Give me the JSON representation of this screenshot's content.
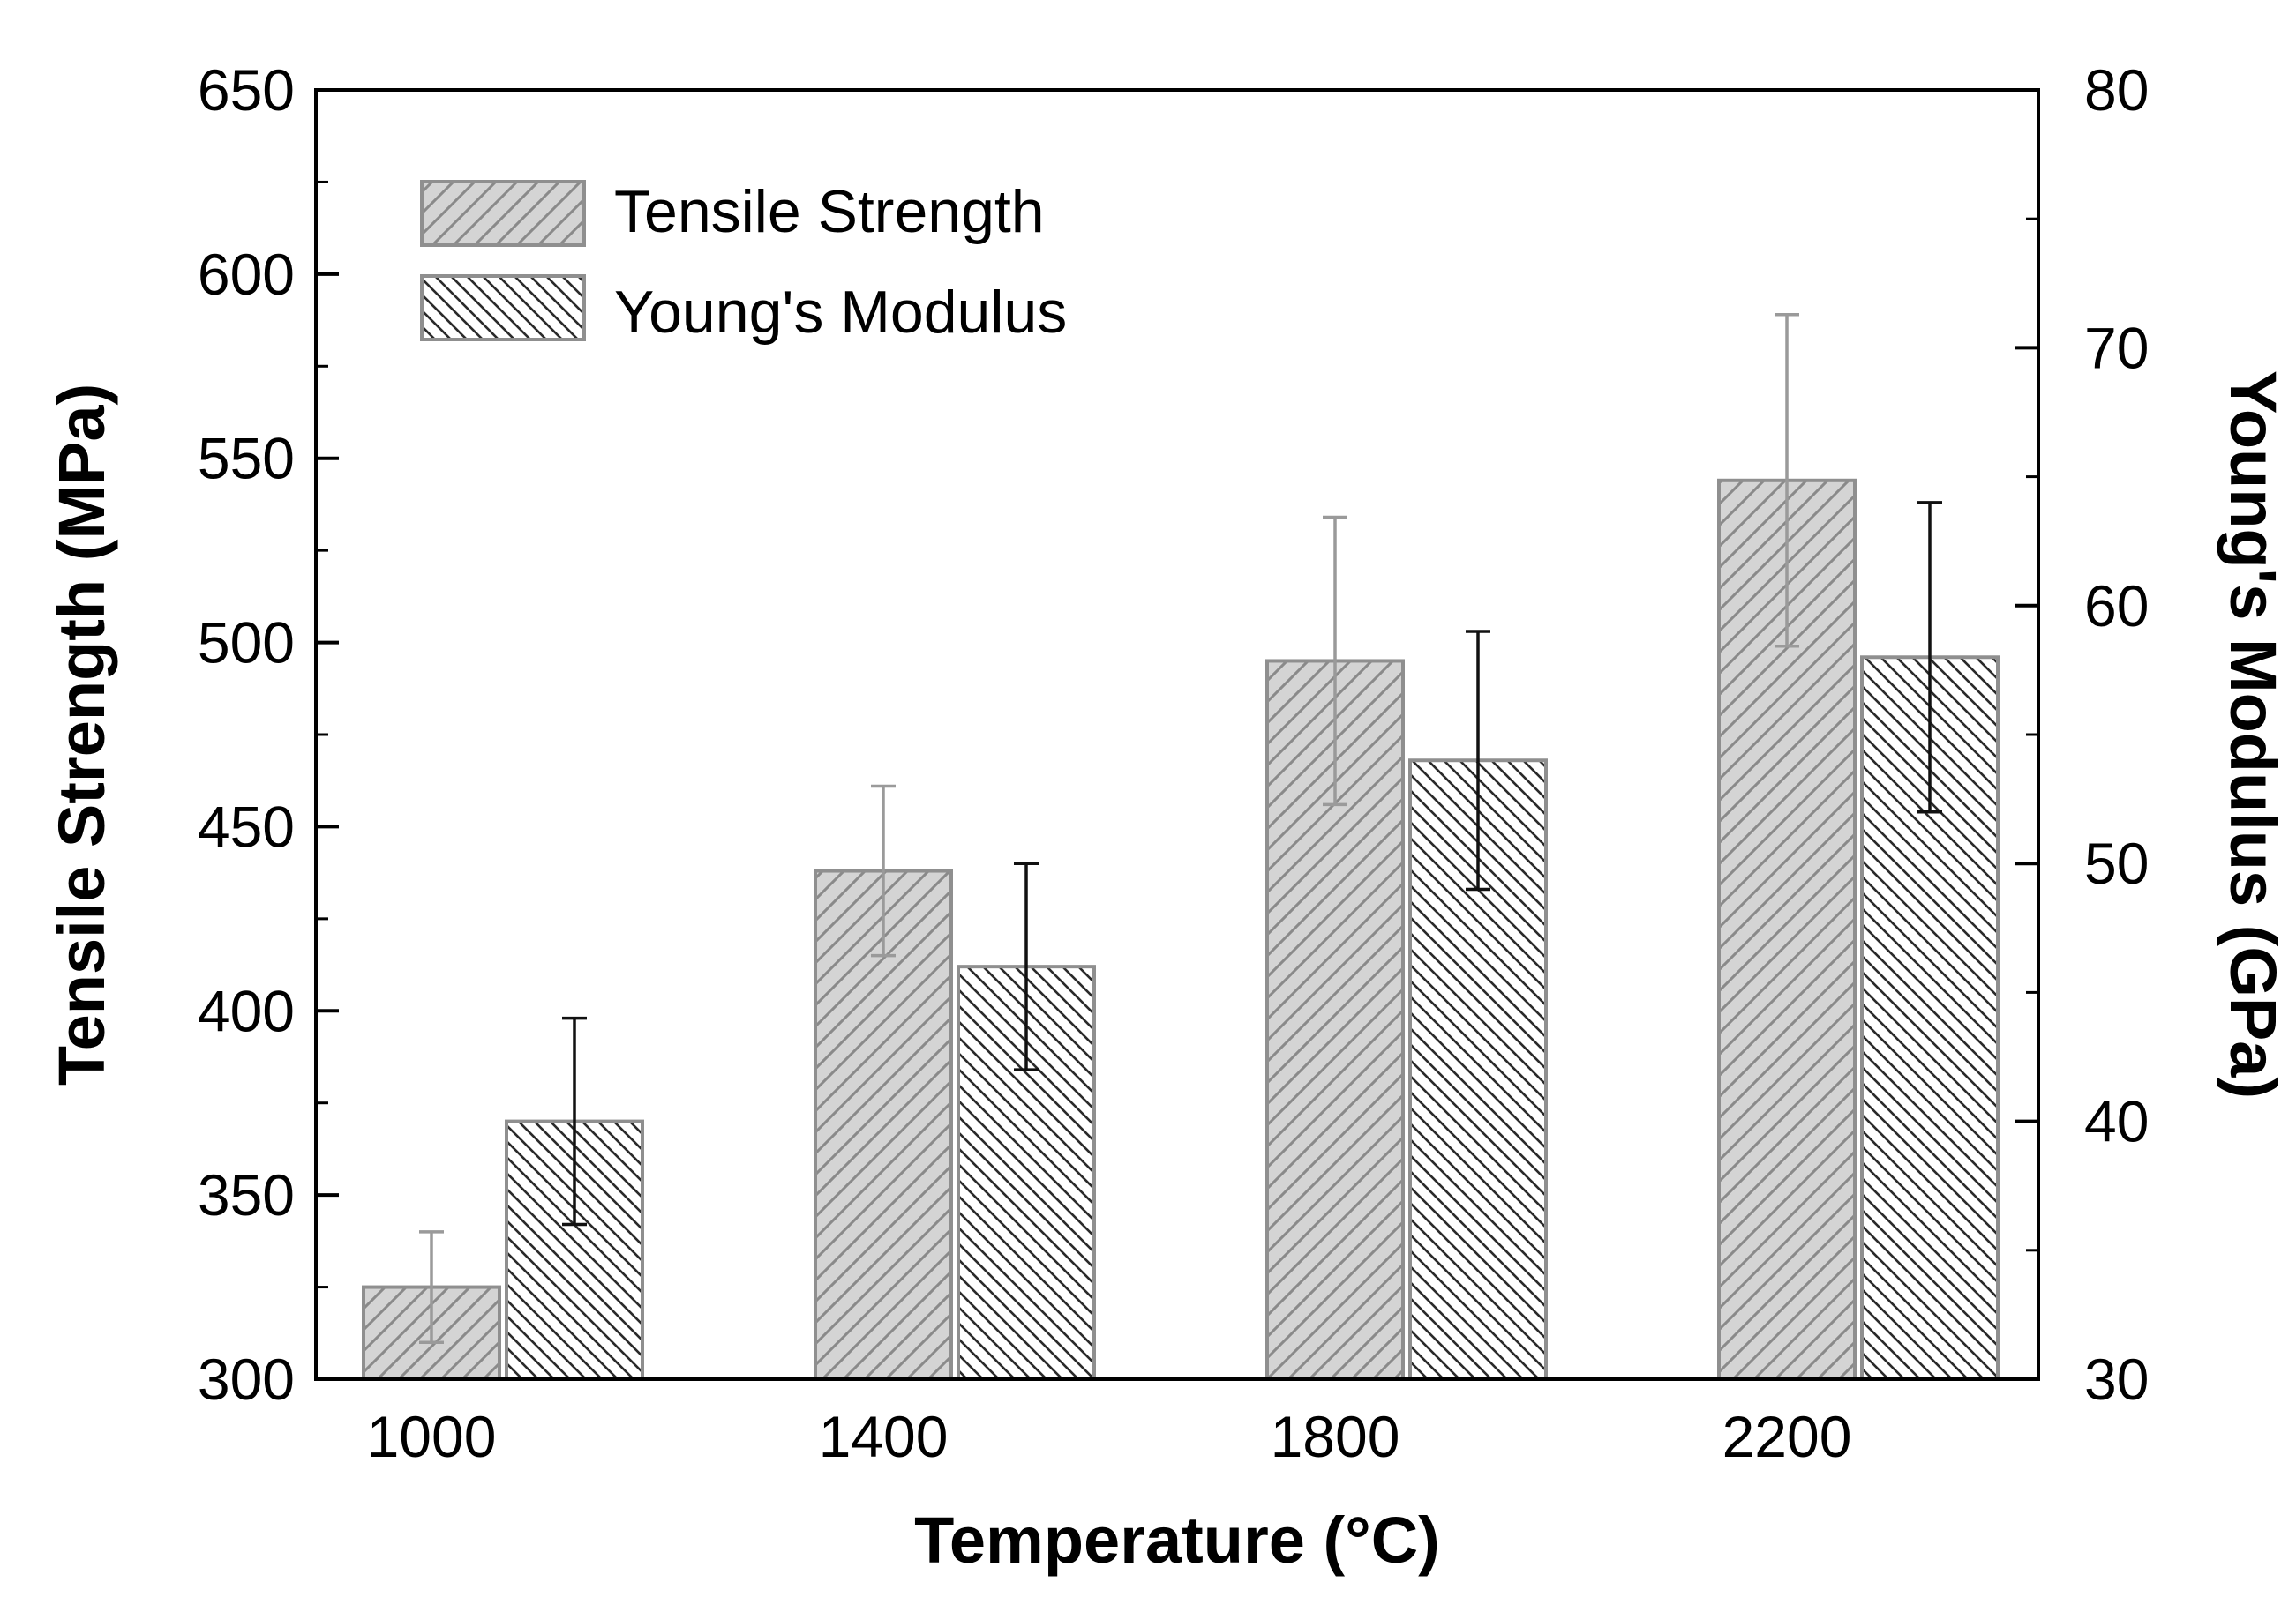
{
  "chart_data": {
    "type": "bar",
    "xlabel": "Temperature (°C)",
    "ylabel_left": "Tensile Strength (MPa)",
    "ylabel_right": "Young's Modulus (GPa)",
    "categories": [
      "1000",
      "1400",
      "1800",
      "2200"
    ],
    "y_left": {
      "min": 300,
      "max": 650,
      "step": 50,
      "ticks": [
        "300",
        "350",
        "400",
        "450",
        "500",
        "550",
        "600",
        "650"
      ]
    },
    "y_right": {
      "min": 30,
      "max": 80,
      "step": 10,
      "ticks": [
        "30",
        "40",
        "50",
        "60",
        "70",
        "80"
      ]
    },
    "legend_position": "top-left",
    "grid": false,
    "series": [
      {
        "name": "Tensile Strength",
        "axis": "left",
        "pattern": "forward-hatch",
        "fill": "#d4d4d4",
        "stroke": "#8f8f8f",
        "error_color": "#9a9a9a",
        "values": [
          325,
          438,
          495,
          544
        ],
        "errors": [
          15,
          23,
          39,
          45
        ]
      },
      {
        "name": "Young's Modulus",
        "axis": "right",
        "pattern": "backward-hatch",
        "fill": "#ffffff",
        "stroke": "#8f8f8f",
        "error_color": "#111111",
        "values": [
          40,
          46,
          54,
          58
        ],
        "errors": [
          4,
          4,
          5,
          6
        ]
      }
    ]
  }
}
